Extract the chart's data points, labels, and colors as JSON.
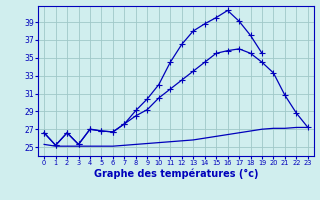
{
  "background_color": "#d0eeee",
  "grid_color": "#a0c8c8",
  "line_color": "#0000bb",
  "xlabel": "Graphe des températures (°c)",
  "yticks": [
    25,
    27,
    29,
    31,
    33,
    35,
    37,
    39
  ],
  "xticks": [
    0,
    1,
    2,
    3,
    4,
    5,
    6,
    7,
    8,
    9,
    10,
    11,
    12,
    13,
    14,
    15,
    16,
    17,
    18,
    19,
    20,
    21,
    22,
    23
  ],
  "xlim": [
    -0.5,
    23.5
  ],
  "ylim": [
    24.0,
    40.8
  ],
  "upper_x": [
    0,
    1,
    2,
    3,
    4,
    5,
    6,
    7,
    8,
    9,
    10,
    11,
    12,
    13,
    14,
    15,
    16,
    17,
    18,
    19
  ],
  "upper_y": [
    26.6,
    25.2,
    26.6,
    25.3,
    27.0,
    26.8,
    26.7,
    27.6,
    29.1,
    30.4,
    32.0,
    34.5,
    36.5,
    38.0,
    38.8,
    39.5,
    40.3,
    39.1,
    37.5,
    35.5
  ],
  "middle_x": [
    0,
    1,
    2,
    3,
    4,
    5,
    6,
    7,
    8,
    9,
    10,
    11,
    12,
    13,
    14,
    15,
    16,
    17,
    18,
    19,
    20,
    21,
    22,
    23
  ],
  "middle_y": [
    26.6,
    25.2,
    26.6,
    25.3,
    27.0,
    26.8,
    26.7,
    27.6,
    28.5,
    29.2,
    30.5,
    31.5,
    32.5,
    33.5,
    34.5,
    35.5,
    35.8,
    36.0,
    35.5,
    34.5,
    33.3,
    30.8,
    28.8,
    27.2
  ],
  "bottom_x": [
    0,
    1,
    2,
    3,
    4,
    5,
    6,
    7,
    8,
    9,
    10,
    11,
    12,
    13,
    14,
    15,
    16,
    17,
    18,
    19,
    20,
    21,
    22,
    23
  ],
  "bottom_y": [
    25.3,
    25.1,
    25.1,
    25.1,
    25.1,
    25.1,
    25.1,
    25.2,
    25.3,
    25.4,
    25.5,
    25.6,
    25.7,
    25.8,
    26.0,
    26.2,
    26.4,
    26.6,
    26.8,
    27.0,
    27.1,
    27.1,
    27.2,
    27.2
  ]
}
